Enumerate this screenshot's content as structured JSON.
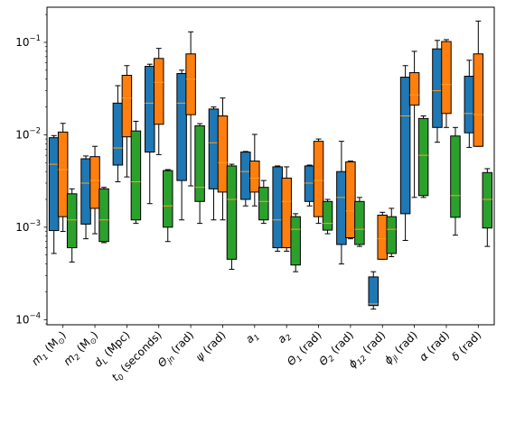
{
  "chart_data": {
    "type": "boxplot",
    "y_scale": "log",
    "ylim": [
      8.8e-05,
      0.24
    ],
    "y_ticks": [
      {
        "value": 0.0001,
        "base": "10",
        "exp": "−4"
      },
      {
        "value": 0.001,
        "base": "10",
        "exp": "−3"
      },
      {
        "value": 0.01,
        "base": "10",
        "exp": "−2"
      },
      {
        "value": 0.1,
        "base": "10",
        "exp": "−1"
      }
    ],
    "categories": [
      {
        "pre": "m",
        "sub": "1",
        "post": " (M",
        "sub2": "⊙",
        "post2": ")"
      },
      {
        "pre": "m",
        "sub": "2",
        "post": " (M",
        "sub2": "⊙",
        "post2": ")"
      },
      {
        "pre": "d",
        "sub": "L",
        "post": " (Mpc)",
        "sub2": "",
        "post2": ""
      },
      {
        "pre": "t",
        "sub": "0",
        "post": " (seconds)",
        "sub2": "",
        "post2": ""
      },
      {
        "pre": "Θ",
        "sub": "jn",
        "post": " (rad)",
        "sub2": "",
        "post2": ""
      },
      {
        "pre": "ψ",
        "sub": "",
        "post": " (rad)",
        "sub2": "",
        "post2": ""
      },
      {
        "pre": "a",
        "sub": "1",
        "post": "",
        "sub2": "",
        "post2": ""
      },
      {
        "pre": "a",
        "sub": "2",
        "post": "",
        "sub2": "",
        "post2": ""
      },
      {
        "pre": "Θ",
        "sub": "1",
        "post": " (rad)",
        "sub2": "",
        "post2": ""
      },
      {
        "pre": "Θ",
        "sub": "2",
        "post": " (rad)",
        "sub2": "",
        "post2": ""
      },
      {
        "pre": "ϕ",
        "sub": "12",
        "post": " (rad)",
        "sub2": "",
        "post2": ""
      },
      {
        "pre": "ϕ",
        "sub": "jl",
        "post": " (rad)",
        "sub2": "",
        "post2": ""
      },
      {
        "pre": "α",
        "sub": "",
        "post": " (rad)",
        "sub2": "",
        "post2": ""
      },
      {
        "pre": "δ",
        "sub": "",
        "post": " (rad)",
        "sub2": "",
        "post2": ""
      }
    ],
    "colors": {
      "blue": "#1f77b4",
      "orange": "#ff7f0e",
      "green": "#2ca02c",
      "median": "#ff9f1a"
    },
    "series": [
      {
        "color": "#1f77b4",
        "boxes": [
          {
            "wlo": 0.00052,
            "q1": 0.00092,
            "med": 0.0048,
            "q3": 0.0093,
            "whi": 0.0098
          },
          {
            "wlo": 0.00075,
            "q1": 0.00108,
            "med": 0.003,
            "q3": 0.0055,
            "whi": 0.0059
          },
          {
            "wlo": 0.0031,
            "q1": 0.0047,
            "med": 0.0072,
            "q3": 0.022,
            "whi": 0.034
          },
          {
            "wlo": 0.0018,
            "q1": 0.0065,
            "med": 0.022,
            "q3": 0.055,
            "whi": 0.058
          },
          {
            "wlo": 0.0012,
            "q1": 0.0032,
            "med": 0.022,
            "q3": 0.046,
            "whi": 0.05
          },
          {
            "wlo": 0.0012,
            "q1": 0.0026,
            "med": 0.0082,
            "q3": 0.019,
            "whi": 0.02
          },
          {
            "wlo": 0.0017,
            "q1": 0.002,
            "med": 0.004,
            "q3": 0.0065,
            "whi": 0.0066
          },
          {
            "wlo": 0.00055,
            "q1": 0.0006,
            "med": 0.0012,
            "q3": 0.0045,
            "whi": 0.0046
          },
          {
            "wlo": 0.0017,
            "q1": 0.0019,
            "med": 0.003,
            "q3": 0.0046,
            "whi": 0.0047
          },
          {
            "wlo": 0.0004,
            "q1": 0.00065,
            "med": 0.0021,
            "q3": 0.004,
            "whi": 0.0085
          },
          {
            "wlo": 0.00013,
            "q1": 0.000142,
            "med": 0.000148,
            "q3": 0.00029,
            "whi": 0.00033
          },
          {
            "wlo": 0.00072,
            "q1": 0.0014,
            "med": 0.016,
            "q3": 0.042,
            "whi": 0.056
          },
          {
            "wlo": 0.0083,
            "q1": 0.012,
            "med": 0.03,
            "q3": 0.085,
            "whi": 0.105
          },
          {
            "wlo": 0.0073,
            "q1": 0.0105,
            "med": 0.017,
            "q3": 0.043,
            "whi": 0.064
          }
        ]
      },
      {
        "color": "#ff7f0e",
        "boxes": [
          {
            "wlo": 0.0009,
            "q1": 0.0013,
            "med": 0.0042,
            "q3": 0.0107,
            "whi": 0.0133
          },
          {
            "wlo": 0.00085,
            "q1": 0.0016,
            "med": 0.0032,
            "q3": 0.0058,
            "whi": 0.0075
          },
          {
            "wlo": 0.0035,
            "q1": 0.0095,
            "med": 0.025,
            "q3": 0.044,
            "whi": 0.056
          },
          {
            "wlo": 0.0061,
            "q1": 0.013,
            "med": 0.037,
            "q3": 0.067,
            "whi": 0.086
          },
          {
            "wlo": 0.0028,
            "q1": 0.0165,
            "med": 0.04,
            "q3": 0.075,
            "whi": 0.13
          },
          {
            "wlo": 0.0012,
            "q1": 0.0024,
            "med": 0.005,
            "q3": 0.016,
            "whi": 0.025
          },
          {
            "wlo": 0.0017,
            "q1": 0.0024,
            "med": 0.0034,
            "q3": 0.0052,
            "whi": 0.0101
          },
          {
            "wlo": 0.00055,
            "q1": 0.0006,
            "med": 0.0019,
            "q3": 0.0034,
            "whi": 0.0045
          },
          {
            "wlo": 0.0011,
            "q1": 0.0013,
            "med": 0.0032,
            "q3": 0.0085,
            "whi": 0.009
          },
          {
            "wlo": 0.00075,
            "q1": 0.00077,
            "med": 0.0015,
            "q3": 0.0051,
            "whi": 0.0052
          },
          {
            "wlo": 0.00045,
            "q1": 0.00045,
            "med": 0.00075,
            "q3": 0.00135,
            "whi": 0.00145
          },
          {
            "wlo": 0.0021,
            "q1": 0.021,
            "med": 0.027,
            "q3": 0.047,
            "whi": 0.08
          },
          {
            "wlo": 0.012,
            "q1": 0.017,
            "med": 0.035,
            "q3": 0.102,
            "whi": 0.107
          },
          {
            "wlo": 0.0075,
            "q1": 0.0075,
            "med": 0.0165,
            "q3": 0.075,
            "whi": 0.17
          }
        ]
      },
      {
        "color": "#2ca02c",
        "boxes": [
          {
            "wlo": 0.00042,
            "q1": 0.0006,
            "med": 0.0012,
            "q3": 0.0023,
            "whi": 0.0026
          },
          {
            "wlo": 0.00068,
            "q1": 0.0007,
            "med": 0.0012,
            "q3": 0.0026,
            "whi": 0.0027
          },
          {
            "wlo": 0.0011,
            "q1": 0.0012,
            "med": 0.0031,
            "q3": 0.011,
            "whi": 0.014
          },
          {
            "wlo": 0.0007,
            "q1": 0.001,
            "med": 0.0017,
            "q3": 0.0041,
            "whi": 0.0042
          },
          {
            "wlo": 0.0011,
            "q1": 0.0019,
            "med": 0.0027,
            "q3": 0.0125,
            "whi": 0.0132
          },
          {
            "wlo": 0.00035,
            "q1": 0.00045,
            "med": 0.002,
            "q3": 0.0046,
            "whi": 0.0048
          },
          {
            "wlo": 0.0011,
            "q1": 0.0012,
            "med": 0.0019,
            "q3": 0.0027,
            "whi": 0.0032
          },
          {
            "wlo": 0.00033,
            "q1": 0.00039,
            "med": 0.00095,
            "q3": 0.0013,
            "whi": 0.0014
          },
          {
            "wlo": 0.00085,
            "q1": 0.00093,
            "med": 0.0011,
            "q3": 0.0019,
            "whi": 0.002
          },
          {
            "wlo": 0.00062,
            "q1": 0.00065,
            "med": 0.00095,
            "q3": 0.0019,
            "whi": 0.0021
          },
          {
            "wlo": 0.00048,
            "q1": 0.00052,
            "med": 0.00095,
            "q3": 0.0013,
            "whi": 0.0016
          },
          {
            "wlo": 0.0021,
            "q1": 0.0022,
            "med": 0.006,
            "q3": 0.015,
            "whi": 0.016
          },
          {
            "wlo": 0.00082,
            "q1": 0.00128,
            "med": 0.0022,
            "q3": 0.0097,
            "whi": 0.012
          },
          {
            "wlo": 0.00062,
            "q1": 0.00098,
            "med": 0.002,
            "q3": 0.0039,
            "whi": 0.0043
          }
        ]
      }
    ]
  }
}
